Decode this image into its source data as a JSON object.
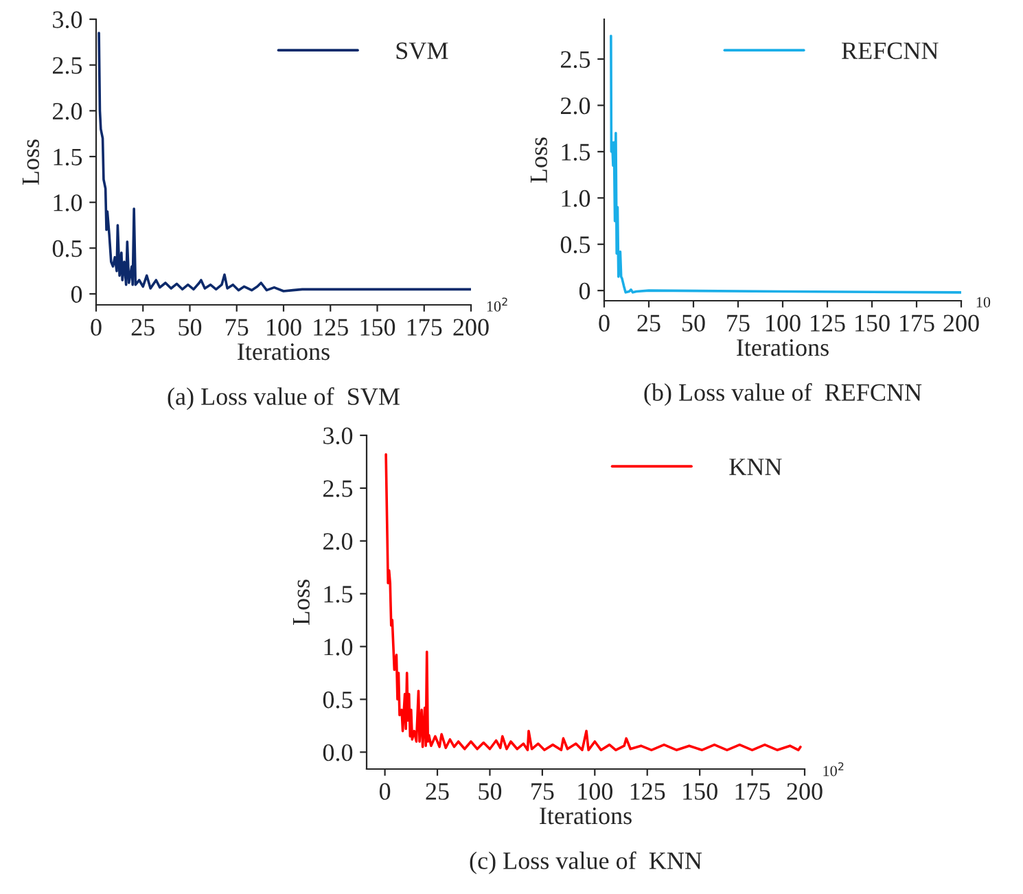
{
  "chart_data": [
    {
      "type": "line",
      "title": "(a) Loss value of  SVM",
      "xlabel": "Iterations",
      "ylabel": "Loss",
      "annotations": [
        "10$^{2}$"
      ],
      "legend": "top right",
      "grid": false,
      "xlim": [
        0,
        200
      ],
      "xticks": [
        0,
        25,
        50,
        75,
        100,
        125,
        150,
        175,
        200
      ],
      "ylim": [
        -0.12,
        3.0
      ],
      "yticks": [
        0,
        0.5,
        {
          "value": 1,
          "label": "1.0"
        },
        1.5,
        {
          "value": 2,
          "label": "2.0"
        },
        2.5,
        {
          "value": 3,
          "label": "3.0"
        }
      ],
      "series": [
        {
          "name": "SVM",
          "color": "#0d2a6b",
          "x": [
            1.5,
            2,
            2.5,
            3.5,
            4,
            5,
            5.5,
            6,
            7,
            8,
            9,
            10,
            11,
            11.5,
            12.5,
            13.5,
            14,
            15,
            16,
            16.6,
            17.5,
            19,
            19.5,
            20.2,
            21,
            23,
            25,
            27,
            29,
            32,
            34,
            37,
            40,
            43,
            46,
            49,
            52,
            55,
            56,
            58,
            61,
            64,
            67,
            68.5,
            70,
            73,
            76,
            79,
            83,
            86,
            88,
            91,
            95,
            100,
            105,
            110,
            150,
            200
          ],
          "values": [
            2.85,
            2.0,
            1.8,
            1.7,
            1.25,
            1.15,
            0.7,
            0.9,
            0.65,
            0.35,
            0.3,
            0.4,
            0.25,
            0.75,
            0.2,
            0.45,
            0.15,
            0.35,
            0.1,
            0.57,
            0.12,
            0.3,
            0.1,
            0.93,
            0.1,
            0.15,
            0.08,
            0.2,
            0.06,
            0.15,
            0.07,
            0.12,
            0.06,
            0.11,
            0.05,
            0.1,
            0.05,
            0.12,
            0.15,
            0.06,
            0.1,
            0.05,
            0.1,
            0.21,
            0.06,
            0.1,
            0.04,
            0.08,
            0.04,
            0.08,
            0.12,
            0.04,
            0.07,
            0.03,
            0.04,
            0.05,
            0.05,
            0.05
          ]
        }
      ]
    },
    {
      "type": "line",
      "title": "(b) Loss value of  REFCNN",
      "xlabel": "Iterations",
      "ylabel": "Loss",
      "annotations": [
        "10"
      ],
      "legend": "top right",
      "grid": false,
      "xlim": [
        0,
        200
      ],
      "xticks": [
        0,
        25,
        50,
        75,
        100,
        125,
        150,
        175,
        200
      ],
      "ylim": [
        -0.11,
        2.93
      ],
      "yticks": [
        0,
        0.5,
        {
          "value": 1,
          "label": "1.0"
        },
        1.5,
        {
          "value": 2,
          "label": "2.0"
        },
        2.5
      ],
      "series": [
        {
          "name": "REFCNN",
          "color": "#1aaee8",
          "x": [
            3.8,
            4,
            4.5,
            5,
            5.5,
            6,
            6.5,
            7,
            7.5,
            8,
            9,
            9.5,
            10,
            11,
            12,
            14,
            15,
            16,
            18,
            25,
            100,
            200
          ],
          "values": [
            2.75,
            1.5,
            1.6,
            1.35,
            1.6,
            0.75,
            1.7,
            0.4,
            0.9,
            0.15,
            0.42,
            0.15,
            0.13,
            0.05,
            -0.02,
            -0.01,
            0.01,
            -0.02,
            -0.01,
            0.0,
            -0.01,
            -0.02
          ]
        }
      ]
    },
    {
      "type": "line",
      "title": "(c) Loss value of  KNN",
      "xlabel": "Iterations",
      "ylabel": "Loss",
      "annotations": [
        "10$^{2}$"
      ],
      "legend": "top right",
      "grid": false,
      "xlim": [
        -8.7,
        200
      ],
      "xticks": [
        0,
        25,
        50,
        75,
        100,
        125,
        150,
        175,
        200
      ],
      "ylim": [
        -0.16,
        3.0
      ],
      "yticks": [
        {
          "value": 0,
          "label": "0.0"
        },
        0.5,
        {
          "value": 1,
          "label": "1.0"
        },
        1.5,
        {
          "value": 2,
          "label": "2.0"
        },
        2.5,
        {
          "value": 3,
          "label": "3.0"
        }
      ],
      "series": [
        {
          "name": "KNN",
          "color": "#ff0000",
          "x": [
            0.5,
            1.5,
            2,
            2.5,
            3,
            3.5,
            4.5,
            5.5,
            6,
            6.5,
            7,
            8,
            8.5,
            9.5,
            10,
            10.5,
            11,
            11.5,
            12,
            12.5,
            13,
            14,
            15,
            16,
            16.5,
            17.5,
            18,
            19,
            19.5,
            20,
            20.5,
            21,
            22,
            24,
            26,
            27,
            29,
            31,
            33,
            35,
            38,
            41,
            44,
            47,
            50,
            53,
            55,
            56,
            58,
            60,
            63,
            66,
            68,
            68.5,
            70,
            73,
            76,
            80,
            84,
            85,
            87,
            91,
            94,
            96,
            97,
            100,
            103,
            107,
            110,
            114,
            115,
            117,
            122,
            127,
            133,
            139,
            145,
            151,
            157,
            163,
            169,
            175,
            181,
            187,
            193,
            197,
            198
          ],
          "values": [
            2.82,
            1.6,
            1.72,
            1.6,
            1.2,
            1.25,
            0.78,
            0.92,
            0.5,
            0.75,
            0.35,
            0.4,
            0.2,
            0.55,
            0.22,
            0.75,
            0.3,
            0.55,
            0.15,
            0.4,
            0.12,
            0.2,
            0.1,
            0.58,
            0.1,
            0.4,
            0.05,
            0.42,
            0.06,
            0.95,
            0.1,
            0.16,
            0.06,
            0.15,
            0.05,
            0.17,
            0.04,
            0.12,
            0.05,
            0.1,
            0.03,
            0.1,
            0.03,
            0.09,
            0.03,
            0.11,
            0.04,
            0.15,
            0.03,
            0.1,
            0.03,
            0.08,
            0.02,
            0.2,
            0.03,
            0.08,
            0.02,
            0.07,
            0.02,
            0.13,
            0.03,
            0.08,
            0.02,
            0.2,
            0.02,
            0.1,
            0.02,
            0.07,
            0.02,
            0.06,
            0.13,
            0.03,
            0.06,
            0.02,
            0.07,
            0.02,
            0.06,
            0.02,
            0.07,
            0.02,
            0.07,
            0.02,
            0.07,
            0.02,
            0.06,
            0.02,
            0.05
          ]
        }
      ]
    }
  ]
}
